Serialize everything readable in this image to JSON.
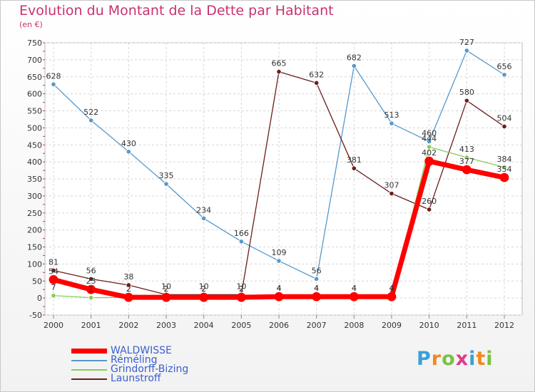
{
  "title": "Evolution du Montant de la Dette par Habitant",
  "subtitle": "(en €)",
  "logo": "Proxiti",
  "chart_data": {
    "type": "line",
    "title": "Evolution du Montant de la Dette par Habitant",
    "ylabel": "(en €)",
    "x": [
      "2000",
      "2001",
      "2002",
      "2003",
      "2004",
      "2005",
      "2006",
      "2007",
      "2008",
      "2009",
      "2010",
      "2011",
      "2012"
    ],
    "ylim": [
      -50,
      750
    ],
    "yticks": [
      -50,
      0,
      50,
      100,
      150,
      200,
      250,
      300,
      350,
      400,
      450,
      500,
      550,
      600,
      650,
      700,
      750
    ],
    "grid": true,
    "legend_position": "bottom-left",
    "series": [
      {
        "name": "WALDWISSE",
        "color": "#ff0000",
        "values": [
          54,
          25,
          2,
          2,
          2,
          2,
          4,
          4,
          4,
          4,
          402,
          377,
          354
        ]
      },
      {
        "name": "Réméling",
        "color": "#5599cc",
        "values": [
          628,
          522,
          430,
          335,
          234,
          166,
          109,
          56,
          682,
          513,
          460,
          727,
          656
        ]
      },
      {
        "name": "Grindorff-Bizing",
        "color": "#88cc55",
        "values": [
          7,
          1,
          2,
          2,
          2,
          2,
          4,
          4,
          4,
          4,
          444,
          413,
          384
        ]
      },
      {
        "name": "Launstroff",
        "color": "#6b1e1e",
        "values": [
          81,
          56,
          38,
          10,
          10,
          10,
          665,
          632,
          381,
          307,
          260,
          580,
          504
        ]
      }
    ]
  }
}
